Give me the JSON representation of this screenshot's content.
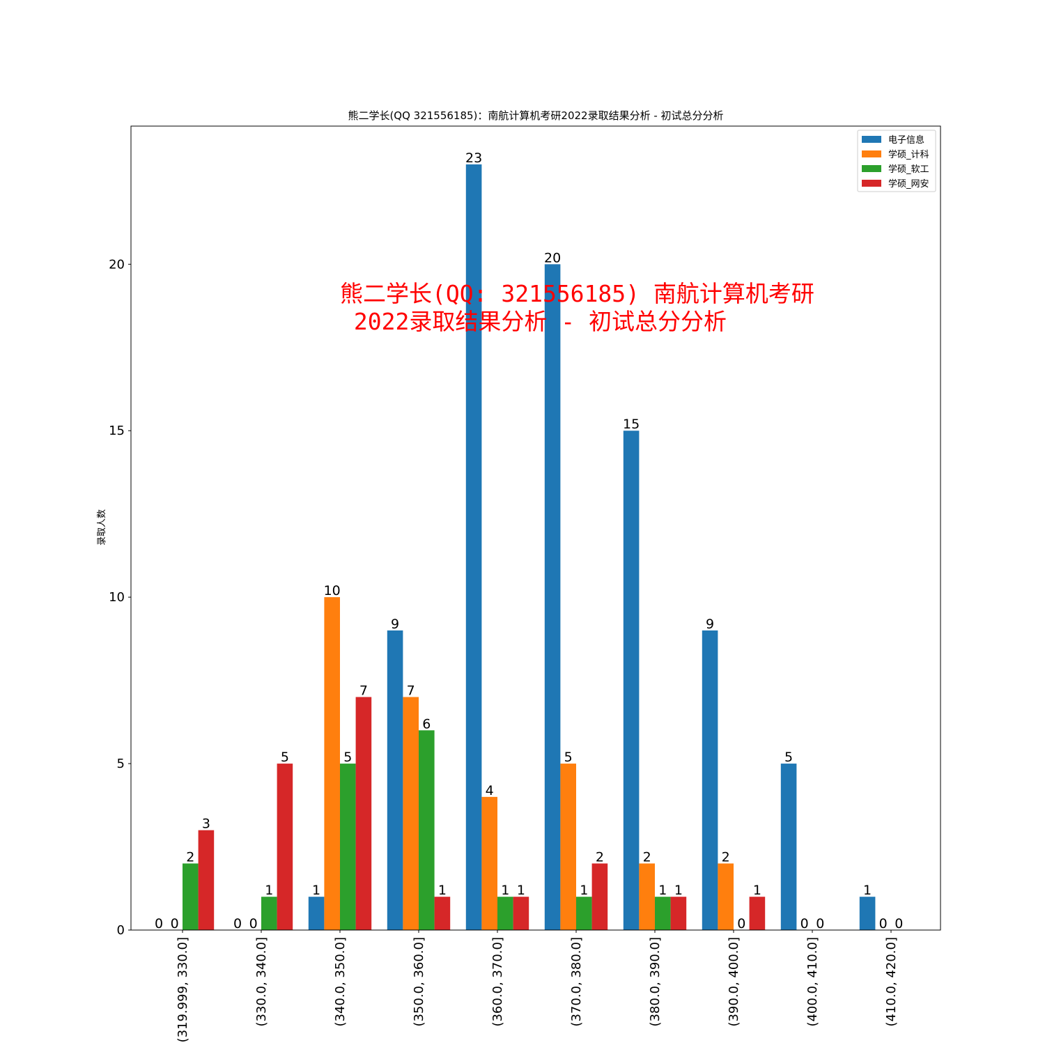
{
  "chart_data": {
    "type": "bar",
    "title": "熊二学长(QQ 321556185)：南航计算机考研2022录取结果分析 - 初试总分分析",
    "xlabel": "",
    "ylabel": "录取人数",
    "ylim": [
      0,
      24.15
    ],
    "yticks": [
      0,
      5,
      10,
      15,
      20
    ],
    "grid": false,
    "legend_position": "top-right",
    "categories": [
      "(319.999, 330.0]",
      "(330.0, 340.0]",
      "(340.0, 350.0]",
      "(350.0, 360.0]",
      "(360.0, 370.0]",
      "(370.0, 380.0]",
      "(380.0, 390.0]",
      "(390.0, 400.0]",
      "(400.0, 410.0]",
      "(410.0, 420.0]"
    ],
    "series": [
      {
        "name": "电子信息",
        "color": "#1f77b4",
        "values": [
          0,
          0,
          1,
          9,
          23,
          20,
          15,
          9,
          5,
          1
        ]
      },
      {
        "name": "学硕_计科",
        "color": "#ff7f0e",
        "values": [
          0,
          0,
          10,
          7,
          4,
          5,
          2,
          2,
          0,
          0
        ]
      },
      {
        "name": "学硕_软工",
        "color": "#2ca02c",
        "values": [
          2,
          1,
          5,
          6,
          1,
          1,
          1,
          0,
          0,
          0
        ]
      },
      {
        "name": "学硕_网安",
        "color": "#d62728",
        "values": [
          3,
          5,
          7,
          1,
          1,
          2,
          1,
          1,
          null,
          null
        ]
      }
    ]
  },
  "watermark": {
    "line1": "熊二学长(QQ: 321556185) 南航计算机考研",
    "line2": " 2022录取结果分析 - 初试总分分析",
    "color": "#ff0000"
  }
}
